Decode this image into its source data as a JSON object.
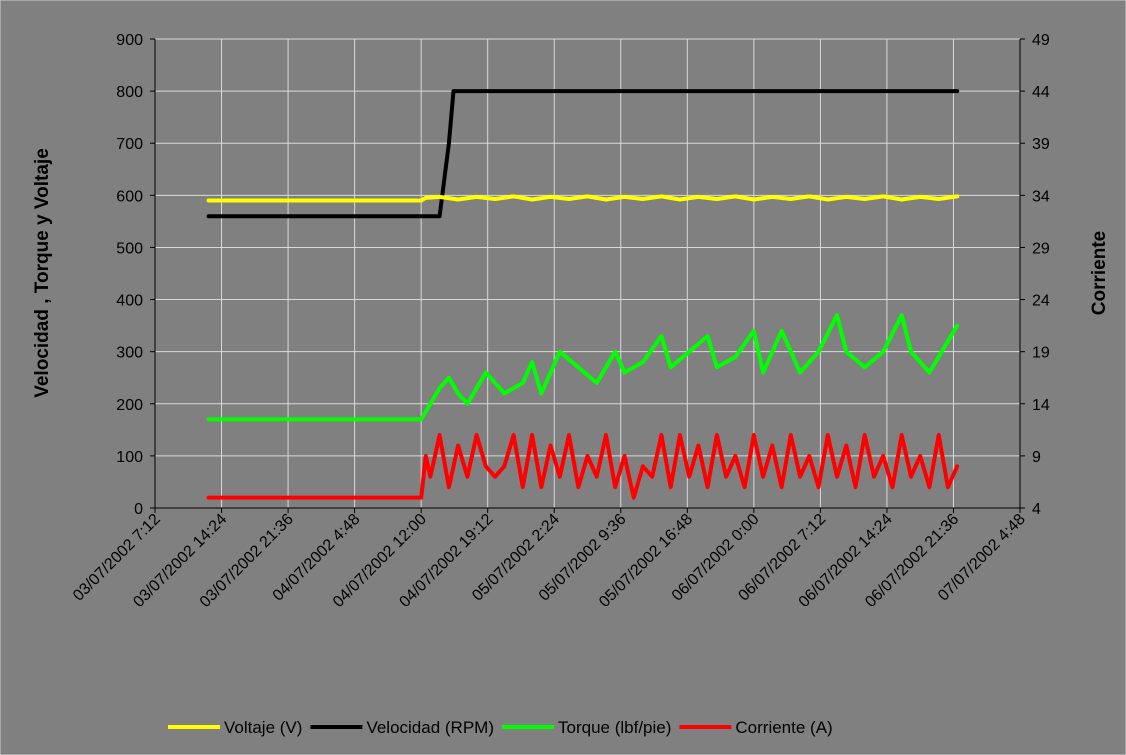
{
  "chart_data": {
    "type": "line",
    "title": "",
    "ylabel": "Velocidad ,  Torque  y  Voltaje",
    "y2label": "Corriente",
    "xlabel": "",
    "ylim": [
      0,
      900
    ],
    "y2lim": [
      4,
      49
    ],
    "xlim": [
      "2002-07-03 07:12",
      "2002-07-07 04:48"
    ],
    "y_ticks": [
      "0",
      "100",
      "200",
      "300",
      "400",
      "500",
      "600",
      "700",
      "800",
      "900"
    ],
    "y2_ticks": [
      "4",
      "9",
      "14",
      "19",
      "24",
      "29",
      "34",
      "39",
      "44",
      "49"
    ],
    "x_ticks": [
      "03/07/2002 7:12",
      "03/07/2002 14:24",
      "03/07/2002 21:36",
      "04/07/2002 4:48",
      "04/07/2002 12:00",
      "04/07/2002 19:12",
      "05/07/2002 2:24",
      "05/07/2002 9:36",
      "05/07/2002 16:48",
      "06/07/2002 0:00",
      "06/07/2002 7:12",
      "06/07/2002 14:24",
      "06/07/2002 21:36",
      "07/07/2002 4:48"
    ],
    "grid": true,
    "background": "#808080",
    "legend_position": "bottom",
    "series": [
      {
        "name": "Voltaje (V)",
        "color": "#ffff00",
        "axis": "left",
        "points": [
          [
            "2002-07-03 13:00",
            590
          ],
          [
            "2002-07-04 12:00",
            590
          ],
          [
            "2002-07-04 12:30",
            595
          ],
          [
            "2002-07-04 14:00",
            597
          ],
          [
            "2002-07-04 16:00",
            592
          ],
          [
            "2002-07-04 18:00",
            597
          ],
          [
            "2002-07-04 20:00",
            593
          ],
          [
            "2002-07-04 22:00",
            598
          ],
          [
            "2002-07-05 00:00",
            592
          ],
          [
            "2002-07-05 02:00",
            597
          ],
          [
            "2002-07-05 04:00",
            593
          ],
          [
            "2002-07-05 06:00",
            598
          ],
          [
            "2002-07-05 08:00",
            592
          ],
          [
            "2002-07-05 10:00",
            597
          ],
          [
            "2002-07-05 12:00",
            593
          ],
          [
            "2002-07-05 14:00",
            598
          ],
          [
            "2002-07-05 16:00",
            592
          ],
          [
            "2002-07-05 18:00",
            597
          ],
          [
            "2002-07-05 20:00",
            593
          ],
          [
            "2002-07-05 22:00",
            598
          ],
          [
            "2002-07-06 00:00",
            592
          ],
          [
            "2002-07-06 02:00",
            597
          ],
          [
            "2002-07-06 04:00",
            593
          ],
          [
            "2002-07-06 06:00",
            598
          ],
          [
            "2002-07-06 08:00",
            592
          ],
          [
            "2002-07-06 10:00",
            597
          ],
          [
            "2002-07-06 12:00",
            593
          ],
          [
            "2002-07-06 14:00",
            598
          ],
          [
            "2002-07-06 16:00",
            592
          ],
          [
            "2002-07-06 18:00",
            597
          ],
          [
            "2002-07-06 20:00",
            593
          ],
          [
            "2002-07-06 22:00",
            598
          ]
        ]
      },
      {
        "name": "Velocidad (RPM)",
        "color": "#000000",
        "axis": "left",
        "points": [
          [
            "2002-07-03 13:00",
            560
          ],
          [
            "2002-07-04 13:00",
            560
          ],
          [
            "2002-07-04 14:00",
            560
          ],
          [
            "2002-07-04 15:00",
            700
          ],
          [
            "2002-07-04 15:30",
            800
          ],
          [
            "2002-07-04 16:00",
            800
          ],
          [
            "2002-07-06 22:00",
            800
          ]
        ]
      },
      {
        "name": "Torque (lbf/pie)",
        "color": "#00ff00",
        "axis": "left",
        "points": [
          [
            "2002-07-03 13:00",
            170
          ],
          [
            "2002-07-04 12:00",
            170
          ],
          [
            "2002-07-04 14:00",
            230
          ],
          [
            "2002-07-04 15:00",
            250
          ],
          [
            "2002-07-04 16:00",
            220
          ],
          [
            "2002-07-04 17:00",
            200
          ],
          [
            "2002-07-04 19:00",
            260
          ],
          [
            "2002-07-04 21:00",
            220
          ],
          [
            "2002-07-04 23:00",
            240
          ],
          [
            "2002-07-05 00:00",
            280
          ],
          [
            "2002-07-05 01:00",
            220
          ],
          [
            "2002-07-05 03:00",
            300
          ],
          [
            "2002-07-05 05:00",
            270
          ],
          [
            "2002-07-05 07:00",
            240
          ],
          [
            "2002-07-05 09:00",
            300
          ],
          [
            "2002-07-05 10:00",
            260
          ],
          [
            "2002-07-05 12:00",
            280
          ],
          [
            "2002-07-05 14:00",
            330
          ],
          [
            "2002-07-05 15:00",
            270
          ],
          [
            "2002-07-05 17:00",
            300
          ],
          [
            "2002-07-05 19:00",
            330
          ],
          [
            "2002-07-05 20:00",
            270
          ],
          [
            "2002-07-05 22:00",
            290
          ],
          [
            "2002-07-06 00:00",
            340
          ],
          [
            "2002-07-06 01:00",
            260
          ],
          [
            "2002-07-06 03:00",
            340
          ],
          [
            "2002-07-06 05:00",
            260
          ],
          [
            "2002-07-06 07:00",
            300
          ],
          [
            "2002-07-06 09:00",
            370
          ],
          [
            "2002-07-06 10:00",
            300
          ],
          [
            "2002-07-06 12:00",
            270
          ],
          [
            "2002-07-06 14:00",
            300
          ],
          [
            "2002-07-06 16:00",
            370
          ],
          [
            "2002-07-06 17:00",
            300
          ],
          [
            "2002-07-06 19:00",
            260
          ],
          [
            "2002-07-06 21:00",
            320
          ],
          [
            "2002-07-06 22:00",
            350
          ]
        ]
      },
      {
        "name": "Corriente (A)",
        "color": "#ff0000",
        "axis": "right",
        "points": [
          [
            "2002-07-03 13:00",
            5
          ],
          [
            "2002-07-04 12:00",
            5
          ],
          [
            "2002-07-04 12:30",
            9
          ],
          [
            "2002-07-04 13:00",
            7
          ],
          [
            "2002-07-04 14:00",
            11
          ],
          [
            "2002-07-04 15:00",
            6
          ],
          [
            "2002-07-04 16:00",
            10
          ],
          [
            "2002-07-04 17:00",
            7
          ],
          [
            "2002-07-04 18:00",
            11
          ],
          [
            "2002-07-04 19:00",
            8
          ],
          [
            "2002-07-04 20:00",
            7
          ],
          [
            "2002-07-04 21:00",
            8
          ],
          [
            "2002-07-04 22:00",
            11
          ],
          [
            "2002-07-04 23:00",
            6
          ],
          [
            "2002-07-05 00:00",
            11
          ],
          [
            "2002-07-05 01:00",
            6
          ],
          [
            "2002-07-05 02:00",
            10
          ],
          [
            "2002-07-05 03:00",
            7
          ],
          [
            "2002-07-05 04:00",
            11
          ],
          [
            "2002-07-05 05:00",
            6
          ],
          [
            "2002-07-05 06:00",
            9
          ],
          [
            "2002-07-05 07:00",
            7
          ],
          [
            "2002-07-05 08:00",
            11
          ],
          [
            "2002-07-05 09:00",
            6
          ],
          [
            "2002-07-05 10:00",
            9
          ],
          [
            "2002-07-05 11:00",
            5
          ],
          [
            "2002-07-05 12:00",
            8
          ],
          [
            "2002-07-05 13:00",
            7
          ],
          [
            "2002-07-05 14:00",
            11
          ],
          [
            "2002-07-05 15:00",
            6
          ],
          [
            "2002-07-05 16:00",
            11
          ],
          [
            "2002-07-05 17:00",
            7
          ],
          [
            "2002-07-05 18:00",
            10
          ],
          [
            "2002-07-05 19:00",
            6
          ],
          [
            "2002-07-05 20:00",
            11
          ],
          [
            "2002-07-05 21:00",
            7
          ],
          [
            "2002-07-05 22:00",
            9
          ],
          [
            "2002-07-05 23:00",
            6
          ],
          [
            "2002-07-06 00:00",
            11
          ],
          [
            "2002-07-06 01:00",
            7
          ],
          [
            "2002-07-06 02:00",
            10
          ],
          [
            "2002-07-06 03:00",
            6
          ],
          [
            "2002-07-06 04:00",
            11
          ],
          [
            "2002-07-06 05:00",
            7
          ],
          [
            "2002-07-06 06:00",
            9
          ],
          [
            "2002-07-06 07:00",
            6
          ],
          [
            "2002-07-06 08:00",
            11
          ],
          [
            "2002-07-06 09:00",
            7
          ],
          [
            "2002-07-06 10:00",
            10
          ],
          [
            "2002-07-06 11:00",
            6
          ],
          [
            "2002-07-06 12:00",
            11
          ],
          [
            "2002-07-06 13:00",
            7
          ],
          [
            "2002-07-06 14:00",
            9
          ],
          [
            "2002-07-06 15:00",
            6
          ],
          [
            "2002-07-06 16:00",
            11
          ],
          [
            "2002-07-06 17:00",
            7
          ],
          [
            "2002-07-06 18:00",
            9
          ],
          [
            "2002-07-06 19:00",
            6
          ],
          [
            "2002-07-06 20:00",
            11
          ],
          [
            "2002-07-06 21:00",
            6
          ],
          [
            "2002-07-06 22:00",
            8
          ]
        ]
      }
    ]
  }
}
